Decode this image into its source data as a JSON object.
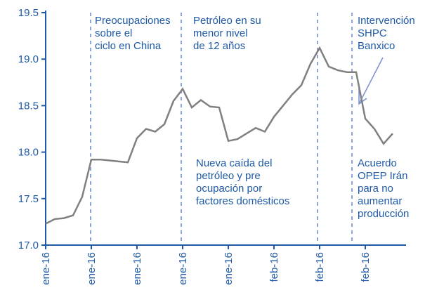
{
  "chart_data": {
    "type": "line",
    "categories": [
      "ene-16",
      null,
      null,
      null,
      null,
      "ene-16",
      null,
      null,
      null,
      null,
      "ene-16",
      null,
      null,
      null,
      null,
      "ene-16",
      null,
      null,
      null,
      null,
      "ene-16",
      null,
      null,
      null,
      null,
      "feb-16",
      null,
      null,
      null,
      null,
      "feb-16",
      null,
      null,
      null,
      null,
      "feb-16",
      null,
      null,
      null
    ],
    "values": [
      17.23,
      17.28,
      17.29,
      17.32,
      17.52,
      17.92,
      17.92,
      17.91,
      17.9,
      17.89,
      18.15,
      18.25,
      18.22,
      18.3,
      18.55,
      18.68,
      18.48,
      18.56,
      18.49,
      18.48,
      18.12,
      18.14,
      18.2,
      18.26,
      18.22,
      18.38,
      18.5,
      18.62,
      18.72,
      18.95,
      19.12,
      18.92,
      18.88,
      18.86,
      18.86,
      18.36,
      18.25,
      18.09,
      18.2
    ],
    "color": "#808080",
    "ylim": [
      17.0,
      19.5
    ],
    "yticks": [
      {
        "value": 17.0,
        "label": "17.0"
      },
      17.5,
      {
        "value": 18.0,
        "label": "18.0"
      },
      18.5,
      {
        "value": 19.0,
        "label": "19.0"
      },
      19.5
    ],
    "annotations": [
      [
        "Preocupaciones",
        "sobre el",
        "ciclo en China"
      ],
      [
        "Petróleo en su",
        "menor nivel",
        "de 12 años"
      ],
      [
        "Intervención",
        "SHPC",
        "Banxico"
      ],
      [
        "Nueva caída del",
        "petróleo y pre",
        "ocupación por",
        "factores domésticos"
      ],
      [
        "Acuerdo",
        "OPEP Irán",
        "para no",
        "aumentar",
        "producción"
      ]
    ]
  }
}
